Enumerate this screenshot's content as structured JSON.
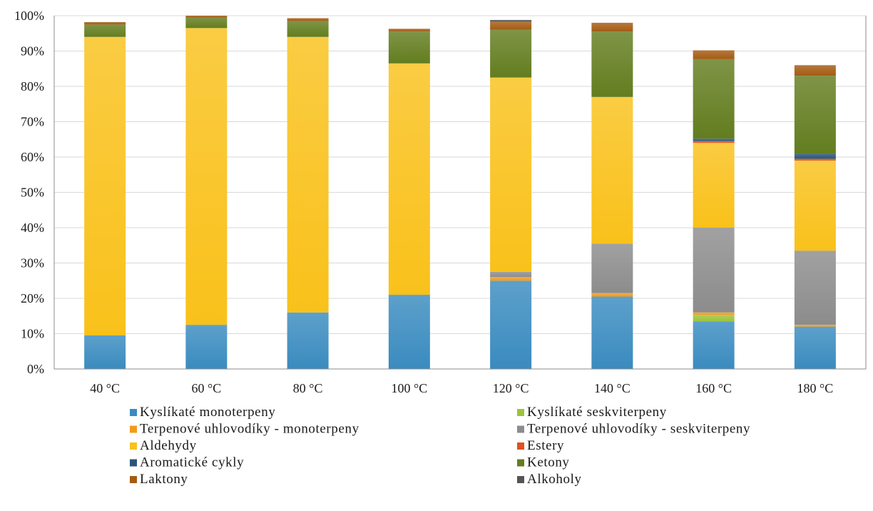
{
  "chart_data": {
    "type": "bar",
    "stacked": true,
    "title": "",
    "xlabel": "",
    "ylabel": "",
    "categories": [
      "40 °C",
      "60 °C",
      "80 °C",
      "100 °C",
      "120 °C",
      "140 °C",
      "160 °C",
      "180 °C"
    ],
    "ylim": [
      0,
      100
    ],
    "yticks": [
      0,
      10,
      20,
      30,
      40,
      50,
      60,
      70,
      80,
      90,
      100
    ],
    "ytick_labels": [
      "0%",
      "10%",
      "20%",
      "30%",
      "40%",
      "50%",
      "60%",
      "70%",
      "80%",
      "90%",
      "100%"
    ],
    "grid": "horizontal",
    "legend_position": "bottom",
    "series": [
      {
        "name": "Kyslíkaté monoterpeny",
        "color": "#3a8bbf",
        "values": [
          9.5,
          12.5,
          16,
          21,
          25,
          20.5,
          13.5,
          12
        ]
      },
      {
        "name": "Kyslíkaté seskviterpeny",
        "color": "#9cc33a",
        "values": [
          0,
          0,
          0,
          0,
          0,
          0,
          1.8,
          0
        ]
      },
      {
        "name": "Terpenové uhlovodíky - monoterpeny",
        "color": "#f29a1d",
        "values": [
          0,
          0,
          0,
          0,
          1,
          1,
          0.7,
          0.5
        ]
      },
      {
        "name": "Terpenové uhlovodíky - seskviterpeny",
        "color": "#8c8c8c",
        "values": [
          0,
          0,
          0,
          0,
          1.5,
          14,
          24,
          21
        ]
      },
      {
        "name": "Aldehydy",
        "color": "#f9c11a",
        "values": [
          84.5,
          84,
          78,
          65.5,
          55,
          41.5,
          24,
          25.5
        ]
      },
      {
        "name": "Estery",
        "color": "#e2501f",
        "values": [
          0,
          0,
          0,
          0,
          0,
          0,
          0.5,
          0.5
        ]
      },
      {
        "name": "Aromatické cykly",
        "color": "#2b5578",
        "values": [
          0,
          0,
          0,
          0,
          0,
          0,
          0.7,
          1.5
        ]
      },
      {
        "name": "Ketony",
        "color": "#637d1f",
        "values": [
          3.5,
          3,
          4.5,
          9,
          13.5,
          18.5,
          22.5,
          22
        ]
      },
      {
        "name": "Laktony",
        "color": "#a45b13",
        "values": [
          0.7,
          0.5,
          0.8,
          0.8,
          2.3,
          2.5,
          2.5,
          3
        ]
      },
      {
        "name": "Alkoholy",
        "color": "#555555",
        "values": [
          0,
          0,
          0,
          0,
          0.5,
          0,
          0,
          0
        ]
      }
    ]
  }
}
